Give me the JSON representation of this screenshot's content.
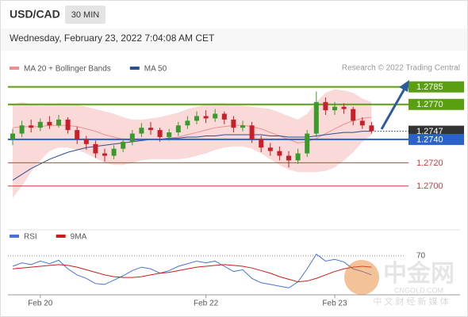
{
  "header": {
    "symbol": "USD/CAD",
    "timeframe": "30 MIN",
    "datetime": "Wednesday, February 23, 2022 7:04:08 AM CET",
    "credit": "Research © 2022 Trading Central"
  },
  "watermark": {
    "name": "中金网",
    "url": "CNGOLD.COM",
    "slogan": "中 文 财 经 新 媒 体"
  },
  "chart_data": [
    {
      "type": "candlestick",
      "up_color": "#3a9a2c",
      "down_color": "#c8202a",
      "ylim": [
        1.2672,
        1.2797
      ],
      "open": [
        1.274,
        1.2745,
        1.2752,
        1.275,
        1.2755,
        1.2752,
        1.2757,
        1.2748,
        1.274,
        1.2736,
        1.2728,
        1.2726,
        1.2732,
        1.2738,
        1.2745,
        1.275,
        1.2748,
        1.2742,
        1.2746,
        1.2752,
        1.2756,
        1.276,
        1.2758,
        1.2762,
        1.2757,
        1.275,
        1.2752,
        1.274,
        1.2733,
        1.273,
        1.2726,
        1.2722,
        1.2728,
        1.2745,
        1.2772,
        1.2765,
        1.2768,
        1.2766,
        1.2756,
        1.2752
      ],
      "high": [
        1.2749,
        1.2756,
        1.2757,
        1.2758,
        1.276,
        1.2761,
        1.2759,
        1.2751,
        1.2743,
        1.2739,
        1.2732,
        1.2735,
        1.2741,
        1.2748,
        1.2754,
        1.2755,
        1.275,
        1.2749,
        1.2755,
        1.276,
        1.2764,
        1.2765,
        1.2766,
        1.2764,
        1.276,
        1.2756,
        1.2755,
        1.2743,
        1.2737,
        1.2734,
        1.273,
        1.2732,
        1.2748,
        1.2781,
        1.2776,
        1.2772,
        1.2771,
        1.2768,
        1.2759,
        1.2755
      ],
      "low": [
        1.2735,
        1.2742,
        1.2746,
        1.2747,
        1.2749,
        1.275,
        1.2745,
        1.2736,
        1.2731,
        1.2724,
        1.2721,
        1.2723,
        1.2729,
        1.2735,
        1.2742,
        1.2744,
        1.2738,
        1.2739,
        1.2743,
        1.2749,
        1.2753,
        1.2754,
        1.2755,
        1.2753,
        1.2746,
        1.2747,
        1.2737,
        1.2729,
        1.2726,
        1.2722,
        1.2716,
        1.2719,
        1.2725,
        1.2742,
        1.2761,
        1.2761,
        1.2762,
        1.2752,
        1.2749,
        1.2745
      ],
      "close": [
        1.2745,
        1.2752,
        1.275,
        1.2755,
        1.2752,
        1.2757,
        1.2748,
        1.274,
        1.2736,
        1.2728,
        1.2726,
        1.2732,
        1.2738,
        1.2745,
        1.275,
        1.2748,
        1.2742,
        1.2746,
        1.2752,
        1.2756,
        1.276,
        1.2758,
        1.2762,
        1.2757,
        1.275,
        1.2752,
        1.274,
        1.2733,
        1.273,
        1.2726,
        1.2722,
        1.2728,
        1.2745,
        1.2772,
        1.2765,
        1.2768,
        1.2766,
        1.2756,
        1.2752,
        1.2747
      ],
      "series": [
        {
          "name": "MA 20 + Bollinger Bands",
          "color": "#ee8f8f",
          "band_color": "#f9cfcf",
          "values": [
            1.275,
            1.2751,
            1.2751,
            1.2751,
            1.2752,
            1.2752,
            1.2752,
            1.2751,
            1.2749,
            1.2747,
            1.2744,
            1.2742,
            1.274,
            1.2739,
            1.2739,
            1.274,
            1.274,
            1.2741,
            1.2742,
            1.2744,
            1.2746,
            1.2748,
            1.275,
            1.2751,
            1.2752,
            1.2752,
            1.2751,
            1.2749,
            1.2746,
            1.2743,
            1.274,
            1.2737,
            1.2738,
            1.2741,
            1.2745,
            1.2749,
            1.2753,
            1.2756,
            1.2758,
            1.2759
          ],
          "upper": [
            1.277,
            1.2772,
            1.277,
            1.2769,
            1.277,
            1.2771,
            1.2771,
            1.277,
            1.2768,
            1.2766,
            1.2764,
            1.2762,
            1.2759,
            1.2757,
            1.2757,
            1.2758,
            1.2759,
            1.2761,
            1.2763,
            1.2766,
            1.2768,
            1.277,
            1.2771,
            1.2771,
            1.277,
            1.2769,
            1.2768,
            1.2767,
            1.2766,
            1.2763,
            1.276,
            1.2757,
            1.2762,
            1.2772,
            1.278,
            1.2783,
            1.2782,
            1.278,
            1.2775,
            1.2772
          ],
          "lower": [
            1.269,
            1.27,
            1.2712,
            1.2722,
            1.273,
            1.2733,
            1.2733,
            1.2731,
            1.2728,
            1.2724,
            1.272,
            1.2718,
            1.2718,
            1.272,
            1.2722,
            1.2723,
            1.2723,
            1.2723,
            1.2723,
            1.2724,
            1.2726,
            1.2728,
            1.2731,
            1.2733,
            1.2734,
            1.2734,
            1.2732,
            1.2728,
            1.2723,
            1.2718,
            1.2714,
            1.2712,
            1.2712,
            1.2712,
            1.2713,
            1.2716,
            1.2722,
            1.2729,
            1.2738,
            1.2744
          ]
        },
        {
          "name": "MA 50",
          "color": "#2c4f8f",
          "values": [
            1.2705,
            1.271,
            1.2715,
            1.2719,
            1.2723,
            1.2726,
            1.2729,
            1.2731,
            1.2733,
            1.2734,
            1.2735,
            1.2736,
            1.2737,
            1.2738,
            1.2739,
            1.274,
            1.274,
            1.2741,
            1.2741,
            1.2742,
            1.2742,
            1.2743,
            1.2743,
            1.2744,
            1.2744,
            1.2744,
            1.2744,
            1.2744,
            1.2743,
            1.2743,
            1.2742,
            1.2742,
            1.2742,
            1.2743,
            1.2744,
            1.2745,
            1.2746,
            1.2746,
            1.2747,
            1.2747
          ]
        }
      ],
      "levels": [
        {
          "value": 1.2785,
          "label": "1.2785",
          "color": "#5a9e12",
          "style": "box"
        },
        {
          "value": 1.277,
          "label": "1.2770",
          "color": "#5a9e12",
          "style": "box"
        },
        {
          "value": 1.2747,
          "label": "1.2747",
          "color": "#333333",
          "style": "last"
        },
        {
          "value": 1.274,
          "label": "1.2740",
          "color": "#2a62c9",
          "style": "box"
        },
        {
          "value": 1.272,
          "label": "1.2720",
          "color": "#d0393b",
          "style": "text"
        },
        {
          "value": 1.27,
          "label": "1.2700",
          "color": "#d0393b",
          "style": "text"
        }
      ]
    },
    {
      "type": "line",
      "ylim": [
        25,
        80
      ],
      "yticks": [
        70
      ],
      "categories": [
        null,
        null,
        null,
        "Feb 20",
        null,
        null,
        null,
        null,
        null,
        null,
        null,
        null,
        null,
        null,
        null,
        null,
        null,
        null,
        null,
        null,
        null,
        "Feb 22",
        null,
        null,
        null,
        null,
        null,
        null,
        null,
        null,
        null,
        null,
        null,
        null,
        null,
        "Feb 23",
        null,
        null,
        null,
        null
      ],
      "series": [
        {
          "name": "RSI",
          "color": "#4a72d6",
          "values": [
            58,
            62,
            60,
            64,
            61,
            65,
            55,
            48,
            44,
            38,
            37,
            42,
            47,
            53,
            57,
            55,
            50,
            53,
            58,
            61,
            64,
            62,
            64,
            58,
            52,
            54,
            44,
            39,
            37,
            35,
            33,
            40,
            55,
            72,
            64,
            66,
            63,
            55,
            52,
            48
          ]
        },
        {
          "name": "9MA",
          "color": "#c81e1e",
          "values": [
            55,
            56,
            57,
            58,
            59,
            60,
            59,
            57,
            54,
            51,
            48,
            46,
            45,
            45,
            46,
            48,
            50,
            51,
            53,
            55,
            57,
            58,
            59,
            60,
            59,
            58,
            56,
            53,
            50,
            46,
            43,
            40,
            41,
            44,
            48,
            52,
            55,
            57,
            58,
            57
          ]
        }
      ]
    }
  ]
}
